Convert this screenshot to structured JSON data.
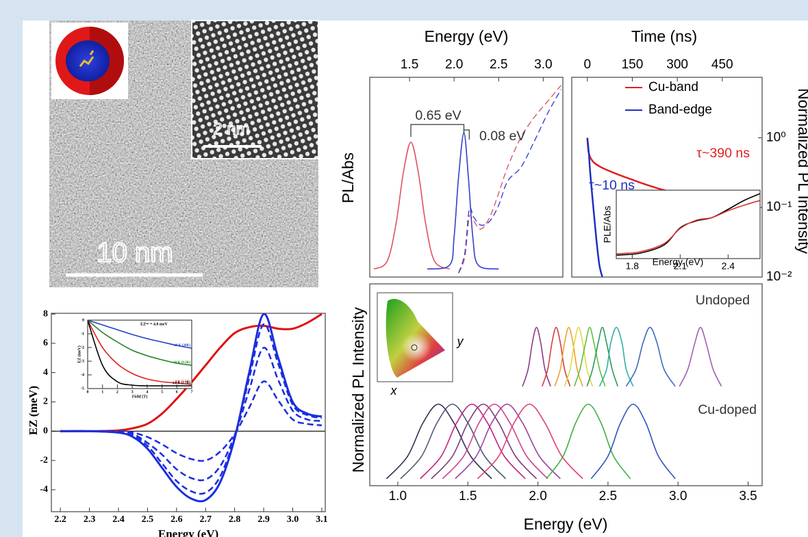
{
  "images": {
    "tem_scale": "10 nm",
    "hrtem_scale": "2 nm"
  },
  "chart_data": [
    {
      "type": "line",
      "xlabel": "Energy (eV)",
      "ylabel": "EZ (meV)",
      "xlim": [
        2.169,
        3.112
      ],
      "ylim": [
        -5.5,
        8.05
      ],
      "xticks": [
        2.2,
        2.3,
        2.4,
        2.5,
        2.6,
        2.7,
        2.8,
        2.9,
        {
          "value": 3,
          "label": "3.0"
        },
        3.1
      ],
      "yticks": [
        -4,
        -2,
        0,
        2,
        4,
        6,
        8
      ],
      "zero_line": true,
      "series": [
        {
          "color": "#e01010",
          "x": [
            2.2,
            2.3,
            2.4,
            2.45,
            2.5,
            2.55,
            2.6,
            2.65,
            2.7,
            2.75,
            2.8,
            2.85,
            2.9,
            2.95,
            3.0,
            3.05,
            3.1
          ],
          "values": [
            0,
            0,
            0.05,
            0.2,
            0.5,
            1.2,
            2.2,
            3.3,
            4.5,
            5.7,
            6.7,
            7.1,
            7.2,
            7.0,
            7.0,
            7.4,
            8.0
          ]
        },
        {
          "color": "#1a2ee0",
          "x": [
            2.2,
            2.3,
            2.4,
            2.45,
            2.5,
            2.55,
            2.6,
            2.65,
            2.7,
            2.75,
            2.8,
            2.85,
            2.9,
            2.95,
            3.0,
            3.05,
            3.1
          ],
          "values": [
            0,
            0,
            -0.1,
            -0.4,
            -1.2,
            -2.5,
            -3.8,
            -4.6,
            -4.7,
            -3.5,
            -0.5,
            4.0,
            8.0,
            5.0,
            2.0,
            1.2,
            1.0
          ]
        },
        {
          "color": "#1a2ee0",
          "dash": "dashed",
          "x": [
            2.2,
            2.3,
            2.4,
            2.45,
            2.5,
            2.55,
            2.6,
            2.65,
            2.7,
            2.75,
            2.8,
            2.85,
            2.9,
            2.95,
            3.0,
            3.05,
            3.1
          ],
          "values": [
            0,
            0,
            -0.1,
            -0.3,
            -1.0,
            -2.2,
            -3.4,
            -4.1,
            -4.2,
            -3.1,
            -0.4,
            3.6,
            7.3,
            4.6,
            1.8,
            1.1,
            0.9
          ]
        },
        {
          "color": "#1a2ee0",
          "dash": "dashed",
          "x": [
            2.2,
            2.3,
            2.4,
            2.45,
            2.5,
            2.55,
            2.6,
            2.65,
            2.7,
            2.75,
            2.8,
            2.85,
            2.9,
            2.95,
            3.0,
            3.05,
            3.1
          ],
          "values": [
            0,
            0,
            -0.05,
            -0.2,
            -0.8,
            -1.6,
            -2.6,
            -3.2,
            -3.3,
            -2.4,
            -0.3,
            2.8,
            5.7,
            3.5,
            1.4,
            0.8,
            0.7
          ]
        },
        {
          "color": "#1a2ee0",
          "dash": "dashed",
          "x": [
            2.2,
            2.3,
            2.4,
            2.45,
            2.5,
            2.55,
            2.6,
            2.65,
            2.7,
            2.75,
            2.8,
            2.85,
            2.9,
            2.95,
            3.0,
            3.05,
            3.1
          ],
          "values": [
            0,
            0,
            0,
            -0.1,
            -0.4,
            -0.9,
            -1.5,
            -1.9,
            -2.0,
            -1.4,
            -0.2,
            1.6,
            3.4,
            2.1,
            0.8,
            0.5,
            0.4
          ]
        }
      ]
    },
    {
      "type": "line",
      "title": "EZˢᵃᵗ = 4.8 meV",
      "xlabel": "Field (T)",
      "ylabel": "EZ (meV)",
      "xlim": [
        0,
        7
      ],
      "ylim": [
        -5,
        0
      ],
      "xticks": [
        0,
        1,
        2,
        3,
        4,
        5,
        6,
        7
      ],
      "yticks": [
        0,
        -1,
        -2,
        -3,
        -4,
        -5
      ],
      "legend": "inline",
      "series": [
        {
          "name": "20 K (20K)",
          "color": "#2040c0",
          "x": [
            0,
            1,
            2,
            3,
            4,
            5,
            6,
            7
          ],
          "values": [
            0,
            -0.35,
            -0.7,
            -1.05,
            -1.35,
            -1.6,
            -1.85,
            -2.05
          ]
        },
        {
          "name": "10 K (9.2K)",
          "color": "#208020",
          "x": [
            0,
            1,
            2,
            3,
            4,
            5,
            6,
            7
          ],
          "values": [
            0,
            -0.9,
            -1.6,
            -2.2,
            -2.6,
            -2.9,
            -3.15,
            -3.3
          ]
        },
        {
          "name": "4 K (5.5K)",
          "color": "#e02020",
          "x": [
            0,
            1,
            2,
            3,
            4,
            5,
            6,
            7
          ],
          "values": [
            0,
            -2.0,
            -3.2,
            -3.9,
            -4.3,
            -4.5,
            -4.6,
            -4.7
          ]
        },
        {
          "name": "1.8 K (1.7K)",
          "color": "#000000",
          "x": [
            0,
            1,
            2,
            3,
            4,
            5,
            6,
            7
          ],
          "values": [
            0,
            -3.3,
            -4.5,
            -4.75,
            -4.8,
            -4.8,
            -4.8,
            -4.8
          ]
        }
      ]
    },
    {
      "type": "line",
      "xlabel": "Energy (eV)",
      "ylabel": "PL/Abs",
      "xaxis_side": "top",
      "xlim": [
        1.054,
        3.22
      ],
      "ylim": [
        0,
        1
      ],
      "xticks": [
        1.5,
        {
          "value": 2,
          "label": "2.0"
        },
        2.5,
        {
          "value": 3,
          "label": "3.0"
        }
      ],
      "annotations": [
        {
          "text": "0.65 eV"
        },
        {
          "text": "0.08 eV"
        }
      ],
      "series": [
        {
          "color": "#e05060",
          "x": [
            1.1,
            1.25,
            1.35,
            1.43,
            1.515,
            1.6,
            1.68,
            1.78,
            1.95
          ],
          "values": [
            0.04,
            0.08,
            0.27,
            0.52,
            0.675,
            0.52,
            0.27,
            0.08,
            0.04
          ]
        },
        {
          "color": "#3040d0",
          "x": [
            1.7,
            1.95,
            2.0,
            2.05,
            2.11,
            2.16,
            2.21,
            2.27,
            2.5
          ],
          "values": [
            0.04,
            0.06,
            0.2,
            0.5,
            0.72,
            0.5,
            0.2,
            0.06,
            0.04
          ]
        },
        {
          "color": "#e05060",
          "dash": "dashed",
          "x": [
            2.05,
            2.12,
            2.17,
            2.22,
            2.3,
            2.4,
            2.5,
            2.6,
            2.75,
            2.9,
            3.05,
            3.2
          ],
          "values": [
            0.02,
            0.1,
            0.3,
            0.28,
            0.24,
            0.3,
            0.42,
            0.55,
            0.7,
            0.8,
            0.88,
            0.96
          ]
        },
        {
          "color": "#3040d0",
          "dash": "dashed",
          "x": [
            2.05,
            2.12,
            2.17,
            2.22,
            2.3,
            2.4,
            2.5,
            2.6,
            2.75,
            2.9,
            3.05,
            3.2
          ],
          "values": [
            0.02,
            0.12,
            0.34,
            0.3,
            0.26,
            0.28,
            0.36,
            0.48,
            0.55,
            0.68,
            0.82,
            0.94
          ]
        }
      ]
    },
    {
      "type": "line",
      "xlabel": "Time (ns)",
      "ylabel": "Normalized PL Intensity",
      "xaxis_side": "top",
      "yaxis_side": "right",
      "log_y": true,
      "xlim": [
        -52,
        583
      ],
      "ylim": [
        0.01,
        7.4
      ],
      "xticks": [
        0,
        150,
        300,
        450
      ],
      "yticks": [
        {
          "value": 1,
          "label": "10⁰"
        },
        {
          "value": 0.1,
          "label": "10⁻¹"
        },
        {
          "value": 0.01,
          "label": "10⁻²"
        }
      ],
      "legend": "upper right",
      "annotations": [
        {
          "text": "τ~390 ns",
          "color": "#e02020"
        },
        {
          "text": "τ~10 ns",
          "color": "#2030c0"
        }
      ],
      "series": [
        {
          "name": "Cu-band",
          "color": "#e02020",
          "x": [
            0,
            5,
            20,
            50,
            100,
            150,
            200,
            250,
            300,
            350,
            400,
            450,
            500,
            560
          ],
          "values": [
            1,
            0.6,
            0.45,
            0.37,
            0.3,
            0.25,
            0.21,
            0.18,
            0.16,
            0.14,
            0.125,
            0.11,
            0.1,
            0.085
          ]
        },
        {
          "name": "Band-edge",
          "color": "#2030c0",
          "x": [
            0,
            5,
            10,
            20,
            30,
            40,
            50
          ],
          "values": [
            1,
            0.6,
            0.3,
            0.1,
            0.035,
            0.015,
            0.01
          ]
        }
      ]
    },
    {
      "type": "line",
      "xlabel": "Energy (eV)",
      "ylabel": "PLE/Abs",
      "xlim": [
        1.7,
        2.6
      ],
      "ylim": [
        0,
        1
      ],
      "xticks": [
        1.8,
        2.1,
        2.4
      ],
      "series": [
        {
          "color": "#000000",
          "x": [
            1.7,
            1.85,
            2.0,
            2.1,
            2.2,
            2.3,
            2.4,
            2.5,
            2.6
          ],
          "values": [
            0.05,
            0.08,
            0.2,
            0.45,
            0.55,
            0.6,
            0.72,
            0.85,
            0.95
          ]
        },
        {
          "color": "#e03030",
          "x": [
            1.7,
            1.85,
            2.0,
            2.1,
            2.2,
            2.3,
            2.4,
            2.5,
            2.6
          ],
          "values": [
            0.07,
            0.1,
            0.22,
            0.44,
            0.56,
            0.6,
            0.7,
            0.78,
            0.85
          ]
        }
      ]
    },
    {
      "type": "line",
      "xlabel": "Energy (eV)",
      "ylabel": "Normalized PL Intensity",
      "xlim": [
        0.8,
        3.6
      ],
      "ylim": [
        0,
        2.6
      ],
      "xticks": [
        {
          "value": 1,
          "label": "1.0"
        },
        1.5,
        {
          "value": 2,
          "label": "2.0"
        },
        2.5,
        {
          "value": 3,
          "label": "3.0"
        },
        3.5
      ],
      "annotations": [
        {
          "text": "Undoped"
        },
        {
          "text": "Cu-doped"
        }
      ],
      "inset_labels": [
        "x",
        "y"
      ],
      "series": [
        {
          "color": "#8b3a8b",
          "x": [
            1.89,
            1.93,
            1.96,
            1.99,
            2.02,
            2.05,
            2.09
          ],
          "values": [
            1.28,
            1.5,
            1.84,
            2.04,
            1.84,
            1.5,
            1.28
          ]
        },
        {
          "color": "#d04040",
          "x": [
            2.03,
            2.07,
            2.1,
            2.13,
            2.16,
            2.19,
            2.23
          ],
          "values": [
            1.28,
            1.5,
            1.84,
            2.04,
            1.84,
            1.5,
            1.28
          ]
        },
        {
          "color": "#f0a030",
          "x": [
            2.12,
            2.16,
            2.19,
            2.22,
            2.25,
            2.28,
            2.32
          ],
          "values": [
            1.28,
            1.5,
            1.84,
            2.04,
            1.84,
            1.5,
            1.28
          ]
        },
        {
          "color": "#e0d840",
          "x": [
            2.19,
            2.23,
            2.26,
            2.29,
            2.32,
            2.35,
            2.39
          ],
          "values": [
            1.28,
            1.5,
            1.84,
            2.04,
            1.84,
            1.5,
            1.28
          ]
        },
        {
          "color": "#60c040",
          "x": [
            2.26,
            2.3,
            2.34,
            2.37,
            2.4,
            2.44,
            2.48
          ],
          "values": [
            1.28,
            1.5,
            1.84,
            2.04,
            1.84,
            1.5,
            1.28
          ]
        },
        {
          "color": "#2a9a5a",
          "x": [
            2.35,
            2.39,
            2.43,
            2.46,
            2.49,
            2.53,
            2.57
          ],
          "values": [
            1.28,
            1.5,
            1.84,
            2.04,
            1.84,
            1.5,
            1.28
          ]
        },
        {
          "color": "#30b0a0",
          "x": [
            2.44,
            2.49,
            2.52,
            2.56,
            2.6,
            2.63,
            2.68
          ],
          "values": [
            1.28,
            1.5,
            1.84,
            2.04,
            1.84,
            1.5,
            1.28
          ]
        },
        {
          "color": "#3a6ac0",
          "x": [
            2.63,
            2.7,
            2.75,
            2.8,
            2.85,
            2.9,
            2.98
          ],
          "values": [
            1.28,
            1.5,
            1.84,
            2.04,
            1.84,
            1.5,
            1.28
          ]
        },
        {
          "color": "#a060b0",
          "x": [
            3.01,
            3.07,
            3.12,
            3.16,
            3.2,
            3.25,
            3.31
          ],
          "values": [
            1.28,
            1.5,
            1.84,
            2.04,
            1.84,
            1.5,
            1.28
          ]
        },
        {
          "color": "#303050",
          "x": [
            0.92,
            1.07,
            1.18,
            1.29,
            1.4,
            1.52,
            1.67
          ],
          "values": [
            0.09,
            0.38,
            0.81,
            1.05,
            0.81,
            0.38,
            0.09
          ]
        },
        {
          "color": "#505a70",
          "x": [
            1.02,
            1.17,
            1.28,
            1.39,
            1.5,
            1.62,
            1.77
          ],
          "values": [
            0.09,
            0.38,
            0.81,
            1.05,
            0.81,
            0.38,
            0.09
          ]
        },
        {
          "color": "#c02080",
          "x": [
            1.16,
            1.31,
            1.42,
            1.53,
            1.64,
            1.76,
            1.91
          ],
          "values": [
            0.09,
            0.38,
            0.81,
            1.05,
            0.81,
            0.38,
            0.09
          ]
        },
        {
          "color": "#7a3a7a",
          "x": [
            1.24,
            1.39,
            1.5,
            1.61,
            1.72,
            1.84,
            1.99
          ],
          "values": [
            0.09,
            0.38,
            0.81,
            1.05,
            0.81,
            0.38,
            0.09
          ]
        },
        {
          "color": "#d04090",
          "x": [
            1.32,
            1.47,
            1.58,
            1.69,
            1.8,
            1.92,
            2.07
          ],
          "values": [
            0.09,
            0.38,
            0.81,
            1.05,
            0.81,
            0.38,
            0.09
          ]
        },
        {
          "color": "#9a40a0",
          "x": [
            1.41,
            1.56,
            1.67,
            1.78,
            1.89,
            2.01,
            2.16
          ],
          "values": [
            0.09,
            0.38,
            0.81,
            1.05,
            0.81,
            0.38,
            0.09
          ]
        },
        {
          "color": "#e04070",
          "x": [
            1.57,
            1.72,
            1.83,
            1.94,
            2.05,
            2.17,
            2.32
          ],
          "values": [
            0.09,
            0.38,
            0.81,
            1.05,
            0.81,
            0.38,
            0.09
          ]
        },
        {
          "color": "#40b040",
          "x": [
            2.06,
            2.18,
            2.27,
            2.36,
            2.45,
            2.54,
            2.66
          ],
          "values": [
            0.09,
            0.38,
            0.81,
            1.05,
            0.81,
            0.38,
            0.09
          ]
        },
        {
          "color": "#3050c0",
          "x": [
            2.38,
            2.5,
            2.59,
            2.68,
            2.77,
            2.86,
            2.98
          ],
          "values": [
            0.09,
            0.38,
            0.81,
            1.05,
            0.81,
            0.38,
            0.09
          ]
        }
      ]
    }
  ]
}
